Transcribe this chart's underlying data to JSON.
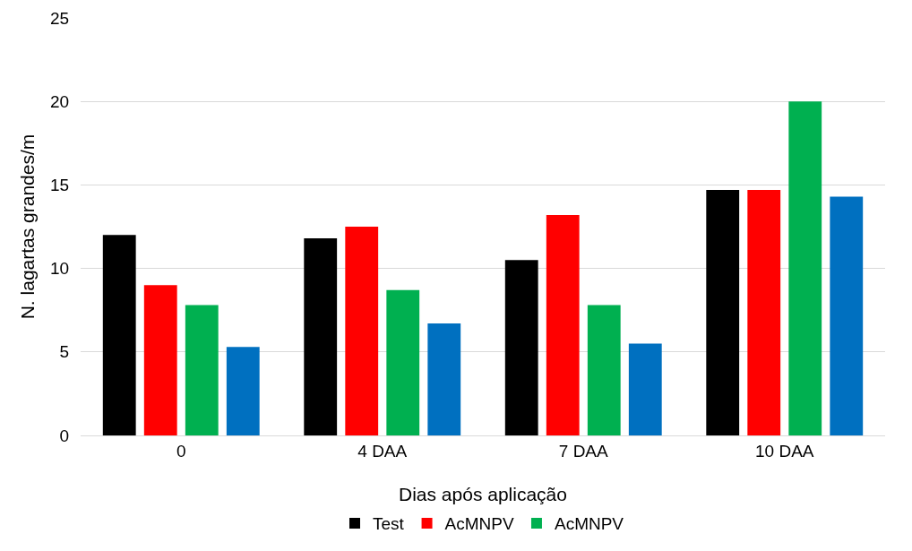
{
  "chart_data": {
    "type": "bar",
    "xlabel": "Dias após aplicação",
    "ylabel": "N. lagartas grandes/m",
    "categories": [
      "0",
      "4 DAA",
      "7 DAA",
      "10 DAA"
    ],
    "series": [
      {
        "name": "Test",
        "color": "#000000",
        "values": [
          12.0,
          11.8,
          10.5,
          14.7
        ]
      },
      {
        "name": "AcMNPV",
        "color": "#ff0000",
        "values": [
          9.0,
          12.5,
          13.2,
          14.7
        ]
      },
      {
        "name": "AcMNPV",
        "color": "#00b050",
        "values": [
          7.8,
          8.7,
          7.8,
          20.0
        ]
      },
      {
        "color": "#0070c0",
        "values": [
          5.3,
          6.7,
          5.5,
          14.3
        ]
      }
    ],
    "ylim": [
      0,
      25
    ],
    "yticks": [
      0,
      5,
      10,
      15,
      20,
      25
    ],
    "grid": "y",
    "legend": "bottom"
  }
}
